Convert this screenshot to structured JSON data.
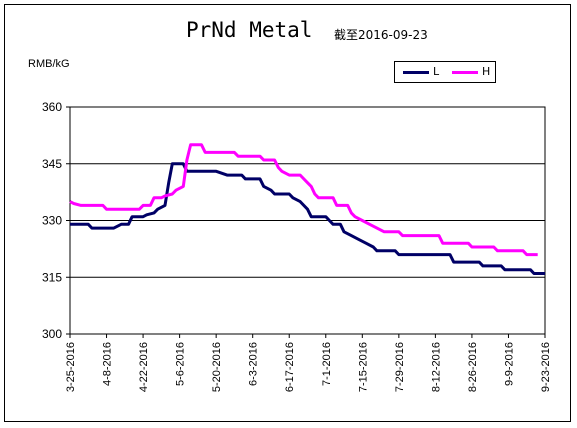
{
  "chart_data": {
    "type": "line",
    "title": "PrNd Metal",
    "subtitle": "截至2016-09-23",
    "ylabel": "RMB/kG",
    "ylim": [
      300,
      360
    ],
    "yticks": [
      300,
      315,
      330,
      345,
      360
    ],
    "ytick_labels": [
      "300",
      "315",
      "330",
      "345",
      "360"
    ],
    "xticks": [
      "3-25-2016",
      "4-8-2016",
      "4-22-2016",
      "5-6-2016",
      "5-20-2016",
      "6-3-2016",
      "6-17-2016",
      "7-1-2016",
      "7-15-2016",
      "7-29-2016",
      "8-12-2016",
      "8-26-2016",
      "9-9-2016",
      "9-23-2016"
    ],
    "grid": "horizontal",
    "legend_position": "top-right",
    "series": [
      {
        "name": "L",
        "color": "#000066",
        "points": [
          [
            0,
            329
          ],
          [
            2,
            329
          ],
          [
            3,
            329
          ],
          [
            5,
            329
          ],
          [
            6,
            328
          ],
          [
            12,
            328
          ],
          [
            14,
            329
          ],
          [
            16,
            329
          ],
          [
            17,
            331
          ],
          [
            20,
            331
          ],
          [
            21,
            331.5
          ],
          [
            23,
            332
          ],
          [
            24,
            333
          ],
          [
            26,
            334
          ],
          [
            27,
            340
          ],
          [
            28,
            345
          ],
          [
            31,
            345
          ],
          [
            32,
            343
          ],
          [
            40,
            343
          ],
          [
            43,
            342
          ],
          [
            47,
            342
          ],
          [
            48,
            341
          ],
          [
            52,
            341
          ],
          [
            53,
            339
          ],
          [
            55,
            338
          ],
          [
            56,
            337
          ],
          [
            60,
            337
          ],
          [
            61,
            336
          ],
          [
            63,
            335
          ],
          [
            64,
            334
          ],
          [
            65,
            333
          ],
          [
            66,
            331
          ],
          [
            70,
            331
          ],
          [
            71,
            330
          ],
          [
            72,
            329
          ],
          [
            74,
            329
          ],
          [
            75,
            327
          ],
          [
            77,
            326
          ],
          [
            79,
            325
          ],
          [
            81,
            324
          ],
          [
            83,
            323
          ],
          [
            84,
            322
          ],
          [
            89,
            322
          ],
          [
            90,
            321
          ],
          [
            104,
            321
          ],
          [
            105,
            319
          ],
          [
            112,
            319
          ],
          [
            113,
            318
          ],
          [
            118,
            318
          ],
          [
            119,
            317
          ],
          [
            126,
            317
          ],
          [
            127,
            316
          ],
          [
            130,
            316
          ]
        ]
      },
      {
        "name": "H",
        "color": "#ff00ff",
        "points": [
          [
            0,
            335
          ],
          [
            1,
            334.5
          ],
          [
            3,
            334
          ],
          [
            9,
            334
          ],
          [
            10,
            333
          ],
          [
            19,
            333
          ],
          [
            20,
            334
          ],
          [
            22,
            334
          ],
          [
            23,
            336
          ],
          [
            25,
            336
          ],
          [
            26,
            336.5
          ],
          [
            28,
            337
          ],
          [
            29,
            338
          ],
          [
            31,
            339
          ],
          [
            32,
            346
          ],
          [
            33,
            350
          ],
          [
            36,
            350
          ],
          [
            37,
            348
          ],
          [
            45,
            348
          ],
          [
            46,
            347
          ],
          [
            52,
            347
          ],
          [
            53,
            346
          ],
          [
            56,
            346
          ],
          [
            57,
            344
          ],
          [
            58,
            343
          ],
          [
            60,
            342
          ],
          [
            63,
            342
          ],
          [
            64,
            341
          ],
          [
            65,
            340
          ],
          [
            66,
            339
          ],
          [
            67,
            337
          ],
          [
            68,
            336
          ],
          [
            72,
            336
          ],
          [
            73,
            334
          ],
          [
            76,
            334
          ],
          [
            77,
            332
          ],
          [
            78,
            331
          ],
          [
            80,
            330
          ],
          [
            82,
            329
          ],
          [
            84,
            328
          ],
          [
            86,
            327
          ],
          [
            90,
            327
          ],
          [
            91,
            326
          ],
          [
            101,
            326
          ],
          [
            102,
            324
          ],
          [
            109,
            324
          ],
          [
            110,
            323
          ],
          [
            116,
            323
          ],
          [
            117,
            322
          ],
          [
            124,
            322
          ],
          [
            125,
            321
          ],
          [
            128,
            321
          ]
        ]
      }
    ]
  }
}
